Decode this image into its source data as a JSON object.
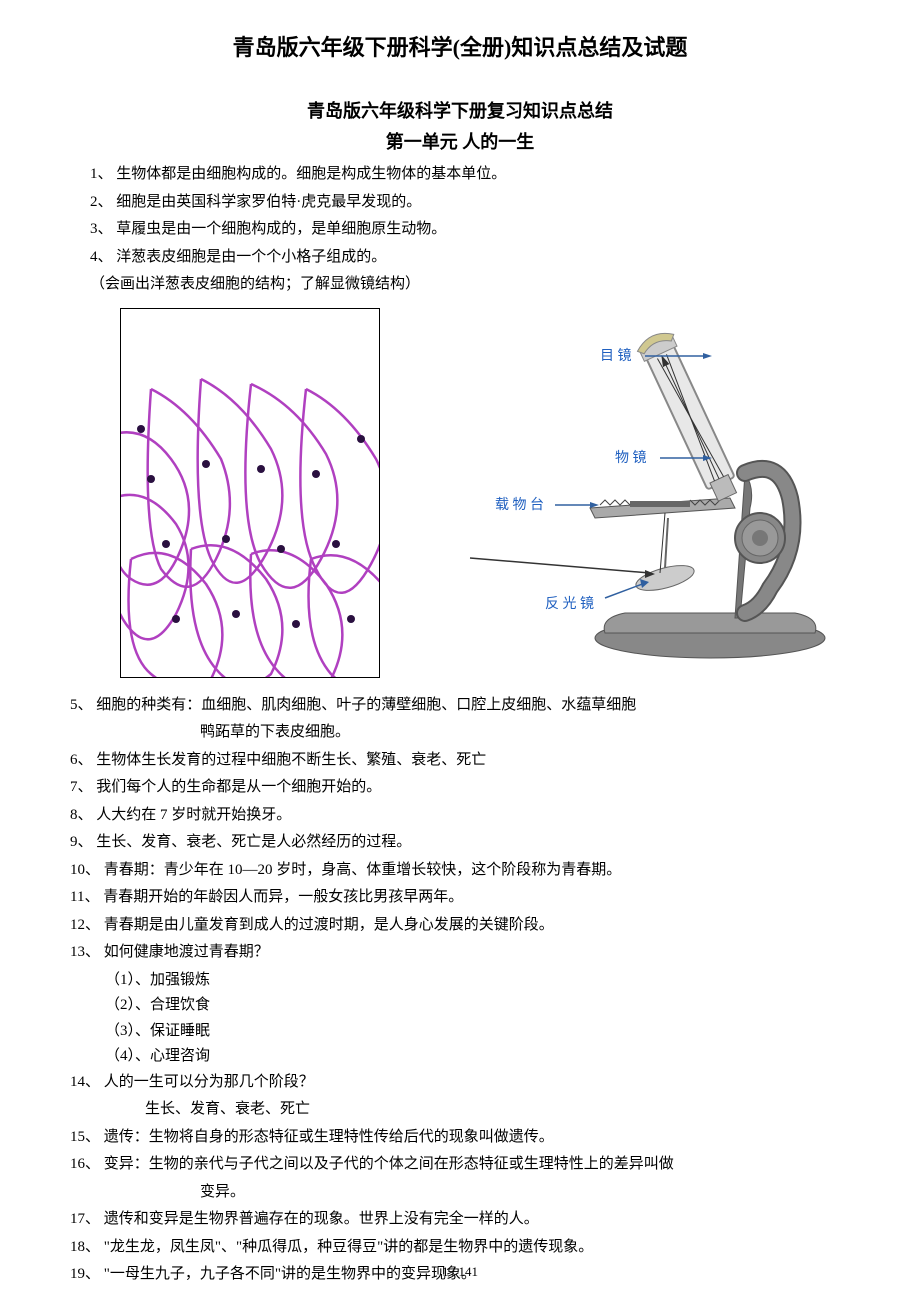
{
  "main_title": "青岛版六年级下册科学(全册)知识点总结及试题",
  "sub_title": "青岛版六年级科学下册复习知识点总结",
  "chapter_title": "第一单元  人的一生",
  "items": [
    {
      "num": "1、",
      "text": "生物体都是由细胞构成的。细胞是构成生物体的基本单位。"
    },
    {
      "num": "2、",
      "text": "细胞是由英国科学家罗伯特·虎克最早发现的。"
    },
    {
      "num": "3、",
      "text": "草履虫是由一个细胞构成的，是单细胞原生动物。"
    },
    {
      "num": "4、",
      "text": "洋葱表皮细胞是由一个个小格子组成的。"
    }
  ],
  "note": "（会画出洋葱表皮细胞的结构；了解显微镜结构）",
  "items2": [
    {
      "num": "5、",
      "text": "细胞的种类有：血细胞、肌肉细胞、叶子的薄壁细胞、口腔上皮细胞、水蕴草细胞",
      "cont": "鸭跖草的下表皮细胞。"
    },
    {
      "num": "6、",
      "text": "生物体生长发育的过程中细胞不断生长、繁殖、衰老、死亡"
    },
    {
      "num": "7、",
      "text": "我们每个人的生命都是从一个细胞开始的。"
    },
    {
      "num": "8、",
      "text": "人大约在 7 岁时就开始换牙。"
    },
    {
      "num": "9、",
      "text": "生长、发育、衰老、死亡是人必然经历的过程。"
    },
    {
      "num": "10、",
      "text": "青春期：青少年在 10—20 岁时，身高、体重增长较快，这个阶段称为青春期。"
    },
    {
      "num": "11、",
      "text": "青春期开始的年龄因人而异，一般女孩比男孩早两年。"
    },
    {
      "num": "12、",
      "text": "青春期是由儿童发育到成人的过渡时期，是人身心发展的关键阶段。"
    },
    {
      "num": "13、",
      "text": "如何健康地渡过青春期？"
    }
  ],
  "sub_items": [
    "（1）、加强锻炼",
    "（2）、合理饮食",
    "（3）、保证睡眠",
    "（4）、心理咨询"
  ],
  "items3": [
    {
      "num": "14、",
      "text": "人的一生可以分为那几个阶段？"
    }
  ],
  "item14_answer": "生长、发育、衰老、死亡",
  "items4": [
    {
      "num": "15、",
      "text": "遗传：生物将自身的形态特征或生理特性传给后代的现象叫做遗传。"
    },
    {
      "num": "16、",
      "text": "变异：生物的亲代与子代之间以及子代的个体之间在形态特征或生理特性上的差异叫做",
      "cont": "变异。"
    },
    {
      "num": "17、",
      "text": "遗传和变异是生物界普遍存在的现象。世界上没有完全一样的人。"
    },
    {
      "num": "18、",
      "text": "\"龙生龙，凤生凤\"、\"种瓜得瓜，种豆得豆\"讲的都是生物界中的遗传现象。"
    },
    {
      "num": "19、",
      "text": "\"一母生九子，九子各不同\"讲的是生物界中的变异现象。"
    }
  ],
  "page_number": "1 / 141",
  "microscope_labels": {
    "eyepiece": "目 镜",
    "objective": "物 镜",
    "stage": "载 物 台",
    "mirror": "反 光 镜"
  },
  "colors": {
    "text": "#000000",
    "background": "#ffffff",
    "cell_purple": "#b040c0",
    "cell_dark": "#2a1040",
    "microscope_gray": "#888888",
    "microscope_dark": "#555555",
    "label_blue": "#2060c0",
    "label_line": "#3060a0"
  }
}
